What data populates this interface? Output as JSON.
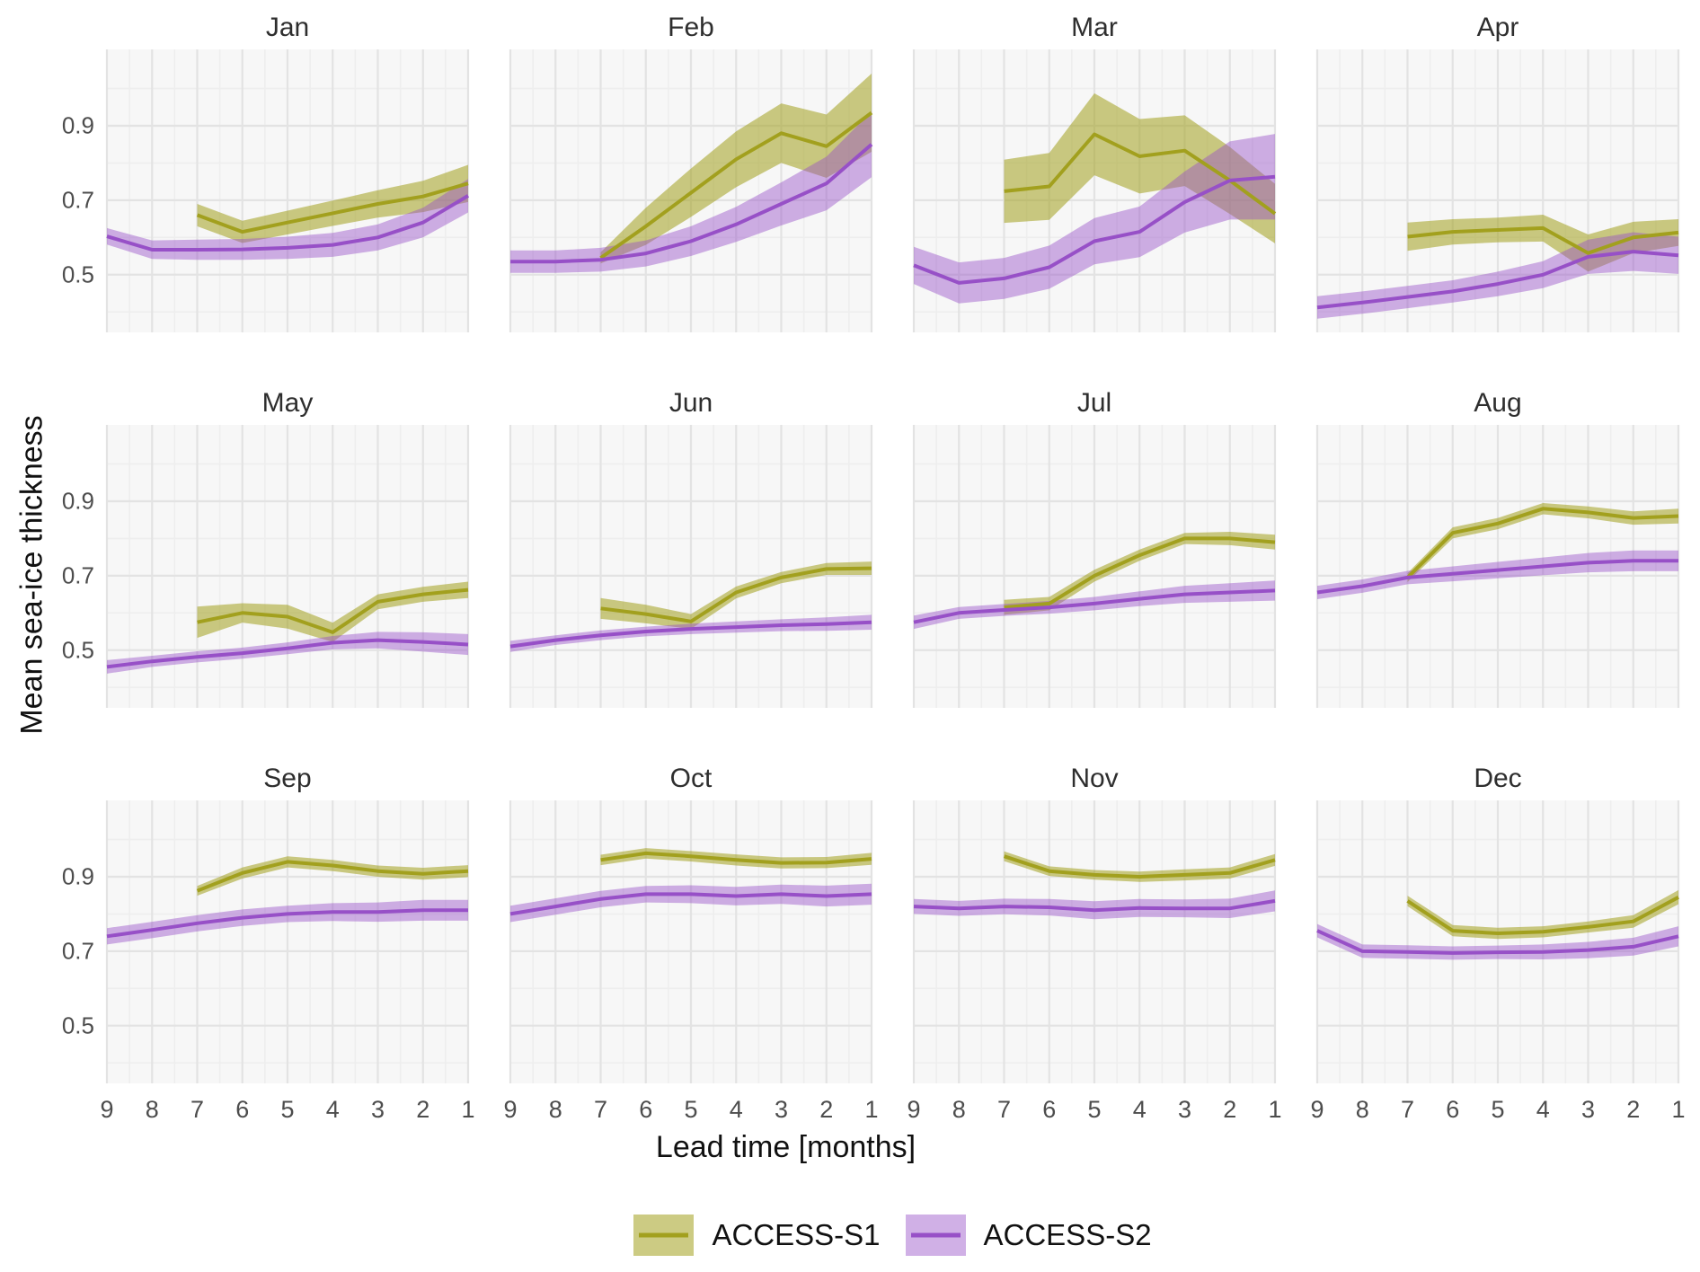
{
  "figure": {
    "y_axis_title": "Mean sea-ice thickness",
    "x_axis_title": "Lead time [months]",
    "y_tick_labels": [
      "0.9",
      "0.7",
      "0.5"
    ],
    "x_tick_labels": [
      "9",
      "8",
      "7",
      "6",
      "5",
      "4",
      "3",
      "2",
      "1"
    ]
  },
  "chart_data": {
    "type": "line",
    "subtype": "line-with-ribbon",
    "facet_by": "start month",
    "xlabel": "Lead time [months]",
    "ylabel": "Mean sea-ice thickness",
    "x_ticks": [
      9,
      8,
      7,
      6,
      5,
      4,
      3,
      2,
      1
    ],
    "x_reversed": true,
    "y_ticks": [
      0.5,
      0.7,
      0.9
    ],
    "y_minor_ticks": [
      0.4,
      0.6,
      0.8,
      1.0
    ],
    "y_range": [
      0.345,
      1.105
    ],
    "grid": true,
    "legend_position": "bottom",
    "panel_bg": "#f7f7f7",
    "grid_major_color": "#e3e3e3",
    "grid_minor_color": "#eeeeee",
    "series_meta": [
      {
        "name": "ACCESS-S1",
        "line_color": "#a2a01e",
        "ribbon_color": "rgba(162,160,30,0.55)"
      },
      {
        "name": "ACCESS-S2",
        "line_color": "#9750c7",
        "ribbon_color": "rgba(151,80,199,0.45)"
      }
    ],
    "facets": [
      {
        "month": "Jan",
        "series": [
          {
            "name": "ACCESS-S1",
            "x": [
              7,
              6,
              5,
              4,
              3,
              2,
              1
            ],
            "y": [
              0.66,
              0.615,
              0.64,
              0.665,
              0.69,
              0.71,
              0.745
            ],
            "band": [
              0.03,
              0.03,
              0.032,
              0.034,
              0.037,
              0.042,
              0.05
            ]
          },
          {
            "name": "ACCESS-S2",
            "x": [
              9,
              8,
              7,
              6,
              5,
              4,
              3,
              2,
              1
            ],
            "y": [
              0.603,
              0.567,
              0.567,
              0.568,
              0.572,
              0.58,
              0.6,
              0.64,
              0.712
            ],
            "band": [
              0.022,
              0.025,
              0.027,
              0.028,
              0.03,
              0.032,
              0.035,
              0.04,
              0.045
            ]
          }
        ]
      },
      {
        "month": "Feb",
        "series": [
          {
            "name": "ACCESS-S1",
            "x": [
              7,
              6,
              5,
              4,
              3,
              2,
              1
            ],
            "y": [
              0.545,
              0.63,
              0.72,
              0.81,
              0.88,
              0.845,
              0.935
            ],
            "band": [
              0.015,
              0.05,
              0.065,
              0.075,
              0.08,
              0.085,
              0.105
            ]
          },
          {
            "name": "ACCESS-S2",
            "x": [
              9,
              8,
              7,
              6,
              5,
              4,
              3,
              2,
              1
            ],
            "y": [
              0.535,
              0.535,
              0.54,
              0.557,
              0.59,
              0.635,
              0.69,
              0.745,
              0.85
            ],
            "band": [
              0.03,
              0.03,
              0.032,
              0.035,
              0.04,
              0.047,
              0.058,
              0.072,
              0.088
            ]
          }
        ]
      },
      {
        "month": "Mar",
        "series": [
          {
            "name": "ACCESS-S1",
            "x": [
              7,
              6,
              5,
              4,
              3,
              2,
              1
            ],
            "y": [
              0.724,
              0.737,
              0.877,
              0.818,
              0.833,
              0.753,
              0.664
            ],
            "band": [
              0.085,
              0.09,
              0.11,
              0.1,
              0.095,
              0.09,
              0.08
            ]
          },
          {
            "name": "ACCESS-S2",
            "x": [
              9,
              8,
              7,
              6,
              5,
              4,
              3,
              2,
              1
            ],
            "y": [
              0.525,
              0.478,
              0.49,
              0.52,
              0.59,
              0.615,
              0.695,
              0.753,
              0.763
            ],
            "band": [
              0.05,
              0.055,
              0.055,
              0.058,
              0.062,
              0.068,
              0.082,
              0.105,
              0.115
            ]
          }
        ]
      },
      {
        "month": "Apr",
        "series": [
          {
            "name": "ACCESS-S1",
            "x": [
              7,
              6,
              5,
              4,
              3,
              2,
              1
            ],
            "y": [
              0.602,
              0.615,
              0.62,
              0.625,
              0.558,
              0.6,
              0.613
            ],
            "band": [
              0.038,
              0.034,
              0.033,
              0.036,
              0.05,
              0.042,
              0.036
            ]
          },
          {
            "name": "ACCESS-S2",
            "x": [
              9,
              8,
              7,
              6,
              5,
              4,
              3,
              2,
              1
            ],
            "y": [
              0.412,
              0.425,
              0.44,
              0.455,
              0.475,
              0.5,
              0.548,
              0.562,
              0.552
            ],
            "band": [
              0.03,
              0.03,
              0.03,
              0.03,
              0.033,
              0.036,
              0.046,
              0.052,
              0.05
            ]
          }
        ]
      },
      {
        "month": "May",
        "series": [
          {
            "name": "ACCESS-S1",
            "x": [
              7,
              6,
              5,
              4,
              3,
              2,
              1
            ],
            "y": [
              0.575,
              0.6,
              0.59,
              0.548,
              0.63,
              0.65,
              0.662
            ],
            "band": [
              0.042,
              0.026,
              0.032,
              0.026,
              0.02,
              0.02,
              0.022
            ]
          },
          {
            "name": "ACCESS-S2",
            "x": [
              9,
              8,
              7,
              6,
              5,
              4,
              3,
              2,
              1
            ],
            "y": [
              0.455,
              0.47,
              0.482,
              0.492,
              0.505,
              0.52,
              0.527,
              0.522,
              0.515
            ],
            "band": [
              0.018,
              0.015,
              0.015,
              0.015,
              0.016,
              0.018,
              0.022,
              0.026,
              0.028
            ]
          }
        ]
      },
      {
        "month": "Jun",
        "series": [
          {
            "name": "ACCESS-S1",
            "x": [
              7,
              6,
              5,
              4,
              3,
              2,
              1
            ],
            "y": [
              0.612,
              0.597,
              0.577,
              0.655,
              0.695,
              0.718,
              0.72
            ],
            "band": [
              0.028,
              0.025,
              0.02,
              0.016,
              0.015,
              0.016,
              0.018
            ]
          },
          {
            "name": "ACCESS-S2",
            "x": [
              9,
              8,
              7,
              6,
              5,
              4,
              3,
              2,
              1
            ],
            "y": [
              0.51,
              0.527,
              0.54,
              0.55,
              0.557,
              0.562,
              0.567,
              0.57,
              0.575
            ],
            "band": [
              0.015,
              0.013,
              0.013,
              0.013,
              0.014,
              0.015,
              0.016,
              0.018,
              0.02
            ]
          }
        ]
      },
      {
        "month": "Jul",
        "series": [
          {
            "name": "ACCESS-S1",
            "x": [
              7,
              6,
              5,
              4,
              3,
              2,
              1
            ],
            "y": [
              0.615,
              0.625,
              0.7,
              0.755,
              0.8,
              0.8,
              0.79
            ],
            "band": [
              0.02,
              0.018,
              0.016,
              0.015,
              0.015,
              0.018,
              0.02
            ]
          },
          {
            "name": "ACCESS-S2",
            "x": [
              9,
              8,
              7,
              6,
              5,
              4,
              3,
              2,
              1
            ],
            "y": [
              0.575,
              0.6,
              0.608,
              0.615,
              0.625,
              0.638,
              0.65,
              0.655,
              0.66
            ],
            "band": [
              0.018,
              0.016,
              0.016,
              0.017,
              0.018,
              0.02,
              0.023,
              0.025,
              0.027
            ]
          }
        ]
      },
      {
        "month": "Aug",
        "series": [
          {
            "name": "ACCESS-S1",
            "x": [
              7,
              6,
              5,
              4,
              3,
              2,
              1
            ],
            "y": [
              0.695,
              0.815,
              0.84,
              0.88,
              0.87,
              0.855,
              0.86
            ],
            "band": [
              0.012,
              0.015,
              0.015,
              0.015,
              0.016,
              0.018,
              0.02
            ]
          },
          {
            "name": "ACCESS-S2",
            "x": [
              9,
              8,
              7,
              6,
              5,
              4,
              3,
              2,
              1
            ],
            "y": [
              0.655,
              0.672,
              0.695,
              0.705,
              0.715,
              0.725,
              0.735,
              0.74,
              0.74
            ],
            "band": [
              0.018,
              0.018,
              0.018,
              0.02,
              0.022,
              0.024,
              0.026,
              0.028,
              0.028
            ]
          }
        ]
      },
      {
        "month": "Sep",
        "series": [
          {
            "name": "ACCESS-S1",
            "x": [
              7,
              6,
              5,
              4,
              3,
              2,
              1
            ],
            "y": [
              0.862,
              0.91,
              0.94,
              0.93,
              0.915,
              0.908,
              0.915
            ],
            "band": [
              0.013,
              0.015,
              0.015,
              0.015,
              0.015,
              0.016,
              0.016
            ]
          },
          {
            "name": "ACCESS-S2",
            "x": [
              9,
              8,
              7,
              6,
              5,
              4,
              3,
              2,
              1
            ],
            "y": [
              0.74,
              0.757,
              0.775,
              0.79,
              0.8,
              0.805,
              0.805,
              0.81,
              0.81
            ],
            "band": [
              0.022,
              0.022,
              0.022,
              0.022,
              0.022,
              0.024,
              0.026,
              0.028,
              0.028
            ]
          }
        ]
      },
      {
        "month": "Oct",
        "series": [
          {
            "name": "ACCESS-S1",
            "x": [
              7,
              6,
              5,
              4,
              3,
              2,
              1
            ],
            "y": [
              0.945,
              0.963,
              0.955,
              0.945,
              0.937,
              0.938,
              0.948
            ],
            "band": [
              0.014,
              0.014,
              0.014,
              0.015,
              0.015,
              0.015,
              0.016
            ]
          },
          {
            "name": "ACCESS-S2",
            "x": [
              9,
              8,
              7,
              6,
              5,
              4,
              3,
              2,
              1
            ],
            "y": [
              0.8,
              0.82,
              0.84,
              0.853,
              0.853,
              0.848,
              0.853,
              0.848,
              0.853
            ],
            "band": [
              0.022,
              0.022,
              0.022,
              0.022,
              0.024,
              0.025,
              0.026,
              0.028,
              0.028
            ]
          }
        ]
      },
      {
        "month": "Nov",
        "series": [
          {
            "name": "ACCESS-S1",
            "x": [
              7,
              6,
              5,
              4,
              3,
              2,
              1
            ],
            "y": [
              0.955,
              0.915,
              0.905,
              0.9,
              0.905,
              0.91,
              0.945
            ],
            "band": [
              0.013,
              0.013,
              0.013,
              0.014,
              0.015,
              0.015,
              0.016
            ]
          },
          {
            "name": "ACCESS-S2",
            "x": [
              9,
              8,
              7,
              6,
              5,
              4,
              3,
              2,
              1
            ],
            "y": [
              0.82,
              0.815,
              0.82,
              0.818,
              0.81,
              0.816,
              0.815,
              0.815,
              0.835
            ],
            "band": [
              0.02,
              0.02,
              0.021,
              0.022,
              0.024,
              0.024,
              0.024,
              0.026,
              0.028
            ]
          }
        ]
      },
      {
        "month": "Dec",
        "series": [
          {
            "name": "ACCESS-S1",
            "x": [
              7,
              6,
              5,
              4,
              3,
              2,
              1
            ],
            "y": [
              0.835,
              0.755,
              0.748,
              0.752,
              0.765,
              0.78,
              0.845
            ],
            "band": [
              0.014,
              0.015,
              0.015,
              0.015,
              0.015,
              0.017,
              0.019
            ]
          },
          {
            "name": "ACCESS-S2",
            "x": [
              9,
              8,
              7,
              6,
              5,
              4,
              3,
              2,
              1
            ],
            "y": [
              0.755,
              0.7,
              0.698,
              0.695,
              0.697,
              0.698,
              0.703,
              0.712,
              0.74
            ],
            "band": [
              0.018,
              0.018,
              0.018,
              0.018,
              0.018,
              0.02,
              0.022,
              0.024,
              0.027
            ]
          }
        ]
      }
    ]
  }
}
